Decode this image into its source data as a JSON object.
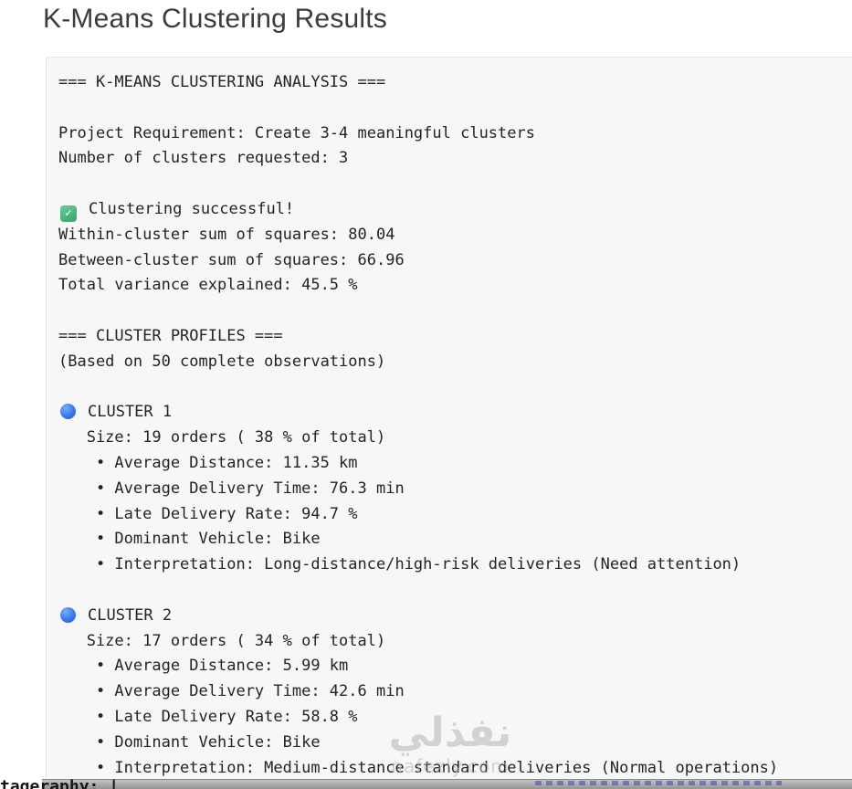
{
  "page": {
    "title": "K-Means Clustering Results"
  },
  "icons": {
    "check_glyph": "✓"
  },
  "console": {
    "lines": [
      {
        "text": "=== K-MEANS CLUSTERING ANALYSIS ==="
      },
      {
        "text": ""
      },
      {
        "text": "Project Requirement: Create 3-4 meaningful clusters"
      },
      {
        "text": "Number of clusters requested: 3"
      },
      {
        "text": ""
      },
      {
        "icon": "check",
        "text": "Clustering successful!"
      },
      {
        "text": "Within-cluster sum of squares: 80.04"
      },
      {
        "text": "Between-cluster sum of squares: 66.96"
      },
      {
        "text": "Total variance explained: 45.5 %"
      },
      {
        "text": ""
      },
      {
        "text": "=== CLUSTER PROFILES ==="
      },
      {
        "text": "(Based on 50 complete observations)"
      },
      {
        "text": ""
      },
      {
        "icon": "blue-circle",
        "text": "CLUSTER 1"
      },
      {
        "text": "   Size: 19 orders ( 38 % of total)"
      },
      {
        "text": "    • Average Distance: 11.35 km"
      },
      {
        "text": "    • Average Delivery Time: 76.3 min"
      },
      {
        "text": "    • Late Delivery Rate: 94.7 %"
      },
      {
        "text": "    • Dominant Vehicle: Bike"
      },
      {
        "text": "    • Interpretation: Long-distance/high-risk deliveries (Need attention)"
      },
      {
        "text": ""
      },
      {
        "icon": "blue-circle",
        "text": "CLUSTER 2"
      },
      {
        "text": "   Size: 17 orders ( 34 % of total)"
      },
      {
        "text": "    • Average Distance: 5.99 km"
      },
      {
        "text": "    • Average Delivery Time: 42.6 min"
      },
      {
        "text": "    • Late Delivery Rate: 58.8 %"
      },
      {
        "text": "    • Dominant Vehicle: Bike"
      },
      {
        "text": "    • Interpretation: Medium-distance standard deliveries (Normal operations)"
      }
    ]
  },
  "watermark": {
    "arabic": "نفذلي",
    "domain": "nafezly.com"
  },
  "bottom_strip": {
    "left_fragment": "tageraphy: |"
  }
}
